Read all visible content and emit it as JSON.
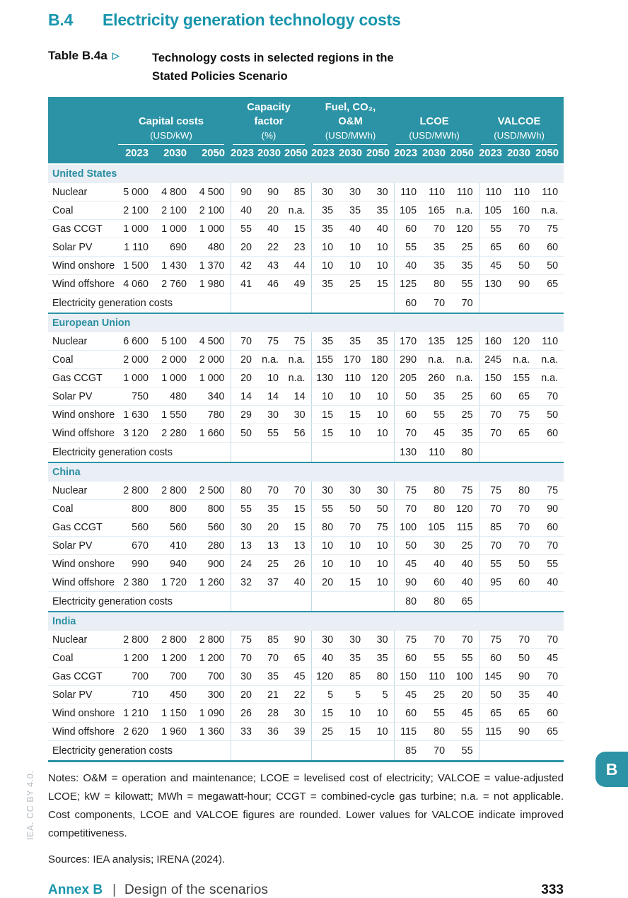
{
  "header": {
    "section_number": "B.4",
    "section_title": "Electricity generation technology costs",
    "table_label": "Table B.4a",
    "arrow_icon": "▷",
    "caption_line1": "Technology costs in selected regions in the",
    "caption_line2": "Stated Policies Scenario"
  },
  "table": {
    "column_groups": [
      {
        "title": "Capital costs",
        "unit": "(USD/kW)"
      },
      {
        "title": "Capacity factor",
        "unit": "(%)"
      },
      {
        "title": "Fuel, CO₂, O&M",
        "unit": "(USD/MWh)"
      },
      {
        "title": "LCOE",
        "unit": "(USD/MWh)"
      },
      {
        "title": "VALCOE",
        "unit": "(USD/MWh)"
      }
    ],
    "years": [
      "2023",
      "2030",
      "2050"
    ],
    "sections": [
      {
        "region": "United States",
        "rows": [
          {
            "label": "Nuclear",
            "values": [
              "5 000",
              "4 800",
              "4 500",
              "90",
              "90",
              "85",
              "30",
              "30",
              "30",
              "110",
              "110",
              "110",
              "110",
              "110",
              "110"
            ]
          },
          {
            "label": "Coal",
            "values": [
              "2 100",
              "2 100",
              "2 100",
              "40",
              "20",
              "n.a.",
              "35",
              "35",
              "35",
              "105",
              "165",
              "n.a.",
              "105",
              "160",
              "n.a."
            ]
          },
          {
            "label": "Gas CCGT",
            "values": [
              "1 000",
              "1 000",
              "1 000",
              "55",
              "40",
              "15",
              "35",
              "40",
              "40",
              "60",
              "70",
              "120",
              "55",
              "70",
              "75"
            ]
          },
          {
            "label": "Solar PV",
            "values": [
              "1 110",
              "690",
              "480",
              "20",
              "22",
              "23",
              "10",
              "10",
              "10",
              "55",
              "35",
              "25",
              "65",
              "60",
              "60"
            ]
          },
          {
            "label": "Wind onshore",
            "values": [
              "1 500",
              "1 430",
              "1 370",
              "42",
              "43",
              "44",
              "10",
              "10",
              "10",
              "40",
              "35",
              "35",
              "45",
              "50",
              "50"
            ]
          },
          {
            "label": "Wind offshore",
            "values": [
              "4 060",
              "2 760",
              "1 980",
              "41",
              "46",
              "49",
              "35",
              "25",
              "15",
              "125",
              "80",
              "55",
              "130",
              "90",
              "65"
            ]
          }
        ],
        "generation_costs": {
          "label": "Electricity generation costs",
          "lcoe": [
            "60",
            "70",
            "70"
          ]
        }
      },
      {
        "region": "European Union",
        "rows": [
          {
            "label": "Nuclear",
            "values": [
              "6 600",
              "5 100",
              "4 500",
              "70",
              "75",
              "75",
              "35",
              "35",
              "35",
              "170",
              "135",
              "125",
              "160",
              "120",
              "110"
            ]
          },
          {
            "label": "Coal",
            "values": [
              "2 000",
              "2 000",
              "2 000",
              "20",
              "n.a.",
              "n.a.",
              "155",
              "170",
              "180",
              "290",
              "n.a.",
              "n.a.",
              "245",
              "n.a.",
              "n.a."
            ]
          },
          {
            "label": "Gas CCGT",
            "values": [
              "1 000",
              "1 000",
              "1 000",
              "20",
              "10",
              "n.a.",
              "130",
              "110",
              "120",
              "205",
              "260",
              "n.a.",
              "150",
              "155",
              "n.a."
            ]
          },
          {
            "label": "Solar PV",
            "values": [
              "750",
              "480",
              "340",
              "14",
              "14",
              "14",
              "10",
              "10",
              "10",
              "50",
              "35",
              "25",
              "60",
              "65",
              "70"
            ]
          },
          {
            "label": "Wind onshore",
            "values": [
              "1 630",
              "1 550",
              "780",
              "29",
              "30",
              "30",
              "15",
              "15",
              "10",
              "60",
              "55",
              "25",
              "70",
              "75",
              "50"
            ]
          },
          {
            "label": "Wind offshore",
            "values": [
              "3 120",
              "2 280",
              "1 660",
              "50",
              "55",
              "56",
              "15",
              "10",
              "10",
              "70",
              "45",
              "35",
              "70",
              "65",
              "60"
            ]
          }
        ],
        "generation_costs": {
          "label": "Electricity generation costs",
          "lcoe": [
            "130",
            "110",
            "80"
          ]
        }
      },
      {
        "region": "China",
        "rows": [
          {
            "label": "Nuclear",
            "values": [
              "2 800",
              "2 800",
              "2 500",
              "80",
              "70",
              "70",
              "30",
              "30",
              "30",
              "75",
              "80",
              "75",
              "75",
              "80",
              "75"
            ]
          },
          {
            "label": "Coal",
            "values": [
              "800",
              "800",
              "800",
              "55",
              "35",
              "15",
              "55",
              "50",
              "50",
              "70",
              "80",
              "120",
              "70",
              "70",
              "90"
            ]
          },
          {
            "label": "Gas CCGT",
            "values": [
              "560",
              "560",
              "560",
              "30",
              "20",
              "15",
              "80",
              "70",
              "75",
              "100",
              "105",
              "115",
              "85",
              "70",
              "60"
            ]
          },
          {
            "label": "Solar PV",
            "values": [
              "670",
              "410",
              "280",
              "13",
              "13",
              "13",
              "10",
              "10",
              "10",
              "50",
              "30",
              "25",
              "70",
              "70",
              "70"
            ]
          },
          {
            "label": "Wind onshore",
            "values": [
              "990",
              "940",
              "900",
              "24",
              "25",
              "26",
              "10",
              "10",
              "10",
              "45",
              "40",
              "40",
              "55",
              "50",
              "55"
            ]
          },
          {
            "label": "Wind offshore",
            "values": [
              "2 380",
              "1 720",
              "1 260",
              "32",
              "37",
              "40",
              "20",
              "15",
              "10",
              "90",
              "60",
              "40",
              "95",
              "60",
              "40"
            ]
          }
        ],
        "generation_costs": {
          "label": "Electricity generation costs",
          "lcoe": [
            "80",
            "80",
            "65"
          ]
        }
      },
      {
        "region": "India",
        "rows": [
          {
            "label": "Nuclear",
            "values": [
              "2 800",
              "2 800",
              "2 800",
              "75",
              "85",
              "90",
              "30",
              "30",
              "30",
              "75",
              "70",
              "70",
              "75",
              "70",
              "70"
            ]
          },
          {
            "label": "Coal",
            "values": [
              "1 200",
              "1 200",
              "1 200",
              "70",
              "70",
              "65",
              "40",
              "35",
              "35",
              "60",
              "55",
              "55",
              "60",
              "50",
              "45"
            ]
          },
          {
            "label": "Gas CCGT",
            "values": [
              "700",
              "700",
              "700",
              "30",
              "35",
              "45",
              "120",
              "85",
              "80",
              "150",
              "110",
              "100",
              "145",
              "90",
              "70"
            ]
          },
          {
            "label": "Solar PV",
            "values": [
              "710",
              "450",
              "300",
              "20",
              "21",
              "22",
              "5",
              "5",
              "5",
              "45",
              "25",
              "20",
              "50",
              "35",
              "40"
            ]
          },
          {
            "label": "Wind onshore",
            "values": [
              "1 210",
              "1 150",
              "1 090",
              "26",
              "28",
              "30",
              "15",
              "10",
              "10",
              "60",
              "55",
              "45",
              "65",
              "65",
              "60"
            ]
          },
          {
            "label": "Wind offshore",
            "values": [
              "2 620",
              "1 960",
              "1 360",
              "33",
              "36",
              "39",
              "25",
              "15",
              "10",
              "115",
              "80",
              "55",
              "115",
              "90",
              "65"
            ]
          }
        ],
        "generation_costs": {
          "label": "Electricity generation costs",
          "lcoe": [
            "85",
            "70",
            "55"
          ]
        }
      }
    ]
  },
  "notes": {
    "text": "Notes:  O&M = operation and maintenance; LCOE = levelised cost of electricity; VALCOE = value-adjusted LCOE; kW = kilowatt; MWh = megawatt-hour; CCGT = combined-cycle gas turbine; n.a. = not applicable. Cost components, LCOE and VALCOE figures are rounded. Lower values for VALCOE indicate improved competitiveness."
  },
  "sources": {
    "text": "Sources:  IEA analysis; IRENA (2024)."
  },
  "footer": {
    "annex_label": "Annex B",
    "separator": "|",
    "section_title": "Design of the scenarios",
    "page_number": "333"
  },
  "side_tab": {
    "label": "B"
  },
  "watermark": {
    "text": "IEA. CC BY 4.0."
  },
  "colors": {
    "teal_accent": "#2b93a5",
    "title_teal": "#1895ac",
    "band_background": "#e9eff4",
    "row_divider": "#e2ecf3",
    "group_divider": "#c2d9e6",
    "text": "#1a1a1a",
    "watermark_gray": "#b5bcc2"
  }
}
